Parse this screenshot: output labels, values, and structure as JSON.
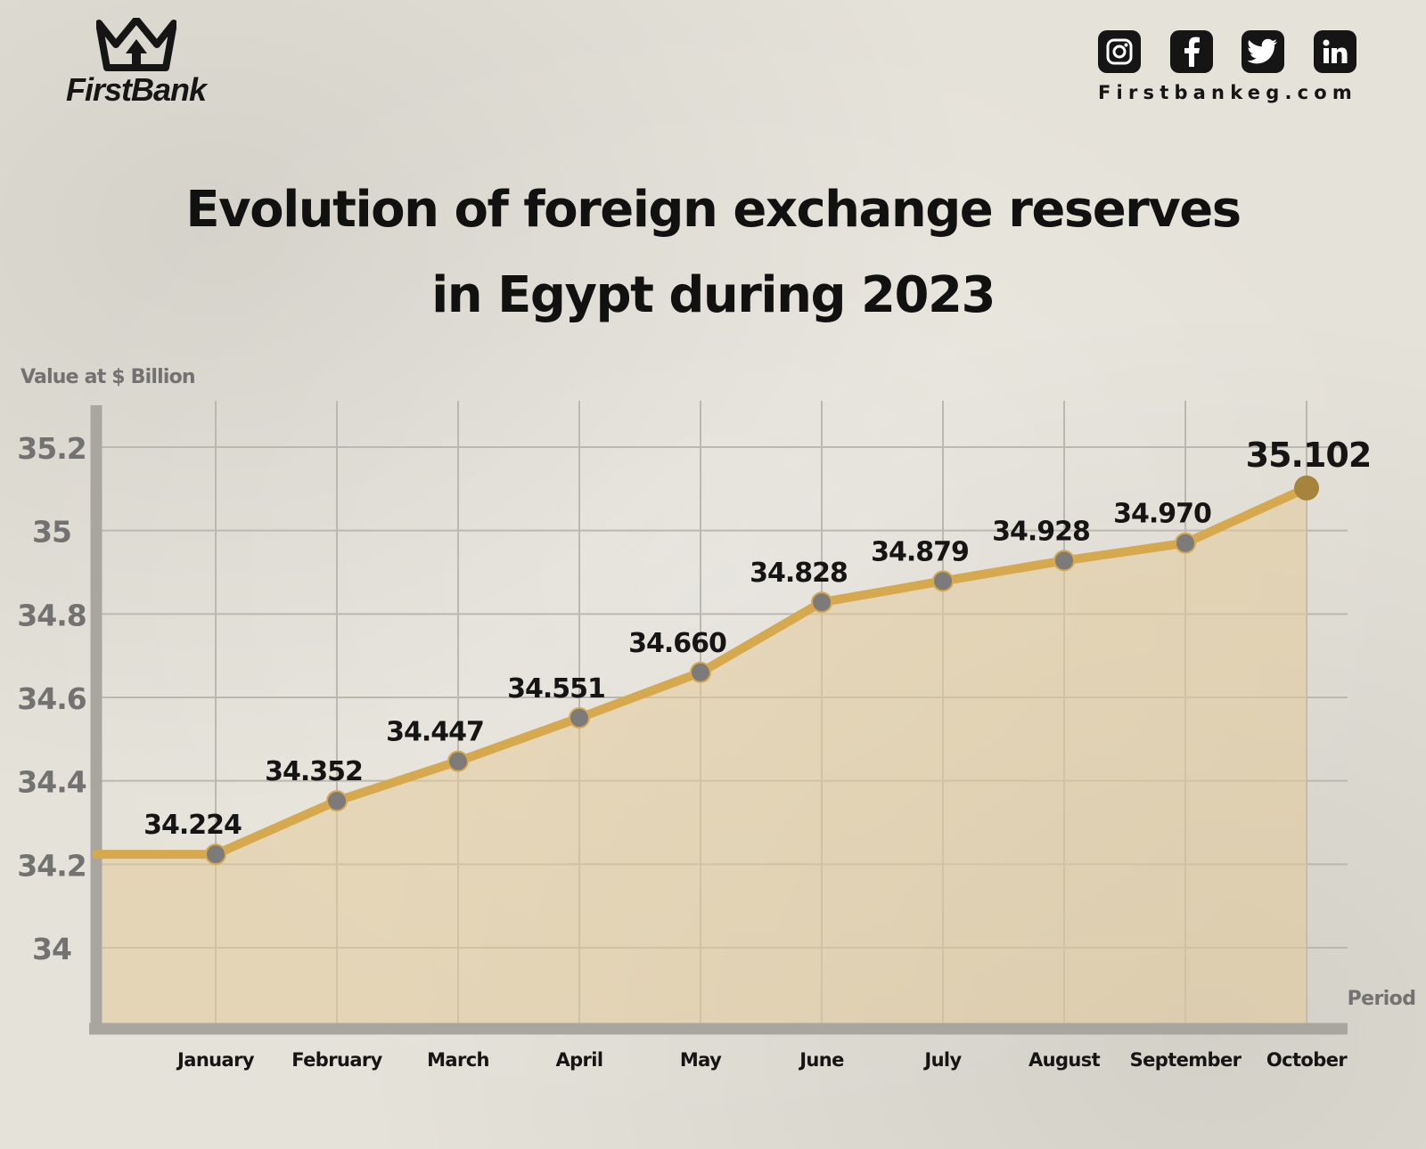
{
  "brand": {
    "name": "FirstBank",
    "website": "Firstbankeg.com",
    "social_icons": [
      "instagram-icon",
      "facebook-icon",
      "twitter-icon",
      "linkedin-icon"
    ]
  },
  "colors": {
    "line": "#d6a94e",
    "area": "#e3cb9a",
    "marker": "#7d7b79",
    "last_marker": "#a7843c",
    "grid": "#bcb8b0",
    "axis": "#a9a6a0",
    "text": "#151515",
    "muted_text": "#727272"
  },
  "chart_data": {
    "type": "area",
    "title_lines": [
      "Evolution of foreign exchange reserves",
      "in Egypt during 2023"
    ],
    "ylabel": "Value at $ Billion",
    "xlabel": "Period",
    "categories": [
      "January",
      "February",
      "March",
      "April",
      "May",
      "June",
      "July",
      "August",
      "September",
      "October"
    ],
    "values": [
      34.224,
      34.352,
      34.447,
      34.551,
      34.66,
      34.828,
      34.879,
      34.928,
      34.97,
      35.102
    ],
    "value_labels": [
      "34.224",
      "34.352",
      "34.447",
      "34.551",
      "34.660",
      "34.828",
      "34.879",
      "34.928",
      "34.970",
      "35.102"
    ],
    "y_ticks": [
      34,
      34.2,
      34.4,
      34.6,
      34.8,
      35,
      35.2
    ],
    "y_tick_labels": [
      "34",
      "34.2",
      "34.4",
      "34.6",
      "34.8",
      "35",
      "35.2"
    ],
    "ylim": [
      33.8,
      35.3
    ],
    "grid": true,
    "legend": "none"
  }
}
